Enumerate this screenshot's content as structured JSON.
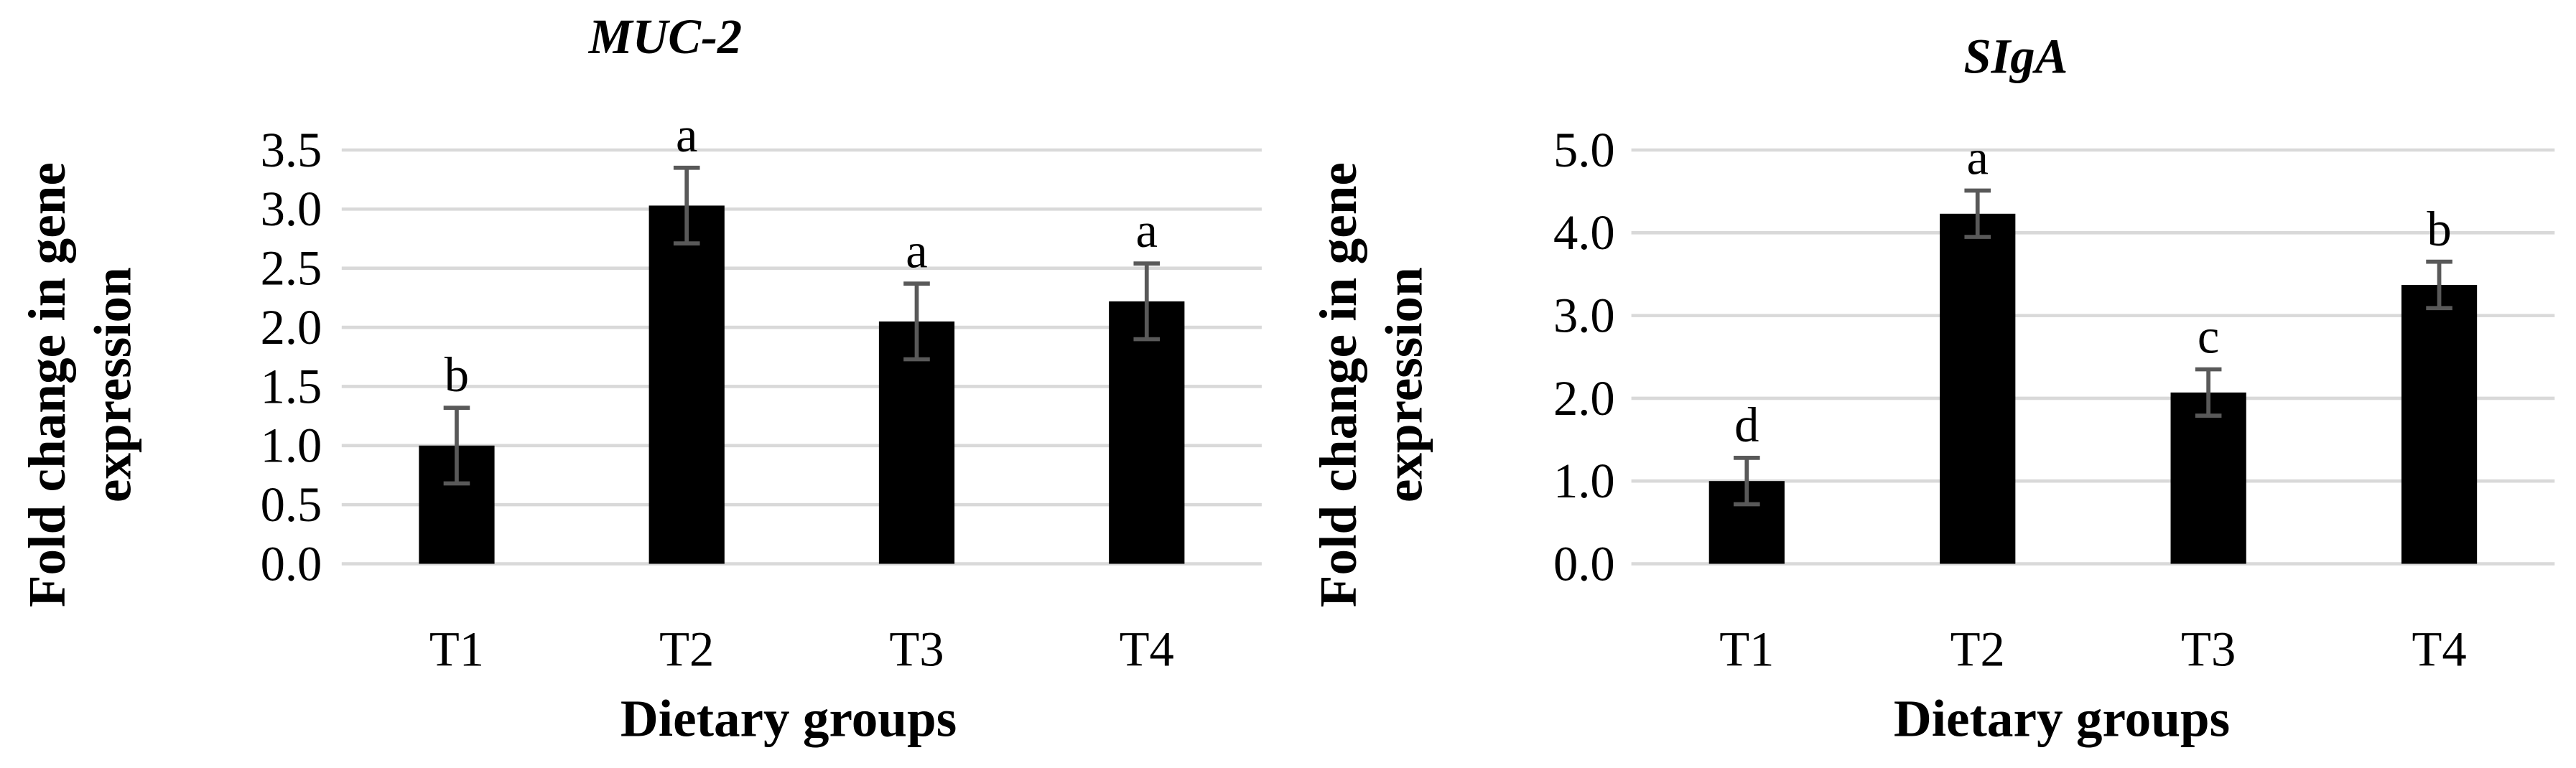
{
  "chart_data": [
    {
      "type": "bar",
      "title": "MUC-2",
      "ylabel": [
        "Fold change in gene",
        "expression"
      ],
      "xlabel": "Dietary groups",
      "categories": [
        "T1",
        "T2",
        "T3",
        "T4"
      ],
      "series": [
        {
          "name": "MUC-2",
          "color": "#000000",
          "values": [
            1.0,
            3.03,
            2.05,
            2.22
          ],
          "errors": [
            0.32,
            0.32,
            0.32,
            0.32
          ]
        }
      ],
      "annotations": [
        "b",
        "a",
        "a",
        "a"
      ],
      "ylim": [
        0,
        3.5
      ],
      "yticks": [
        {
          "value": 0,
          "label": "0.0"
        },
        {
          "value": 0.5,
          "label": "0.5"
        },
        {
          "value": 1,
          "label": "1.0"
        },
        {
          "value": 1.5,
          "label": "1.5"
        },
        {
          "value": 2,
          "label": "2.0"
        },
        {
          "value": 2.5,
          "label": "2.5"
        },
        {
          "value": 3,
          "label": "3.0"
        },
        {
          "value": 3.5,
          "label": "3.5"
        }
      ],
      "grid": true
    },
    {
      "type": "bar",
      "title": "SIgA",
      "ylabel": [
        "Fold change in gene",
        "expression"
      ],
      "xlabel": "Dietary groups",
      "categories": [
        "T1",
        "T2",
        "T3",
        "T4"
      ],
      "series": [
        {
          "name": "SIgA",
          "color": "#000000",
          "values": [
            1.0,
            4.23,
            2.07,
            3.37
          ],
          "errors": [
            0.28,
            0.28,
            0.28,
            0.28
          ]
        }
      ],
      "annotations": [
        "d",
        "a",
        "c",
        "b"
      ],
      "ylim": [
        0,
        5
      ],
      "yticks": [
        {
          "value": 0,
          "label": "0.0"
        },
        {
          "value": 1,
          "label": "1.0"
        },
        {
          "value": 2,
          "label": "2.0"
        },
        {
          "value": 3,
          "label": "3.0"
        },
        {
          "value": 4,
          "label": "4.0"
        },
        {
          "value": 5,
          "label": "5.0"
        }
      ],
      "grid": true
    }
  ]
}
